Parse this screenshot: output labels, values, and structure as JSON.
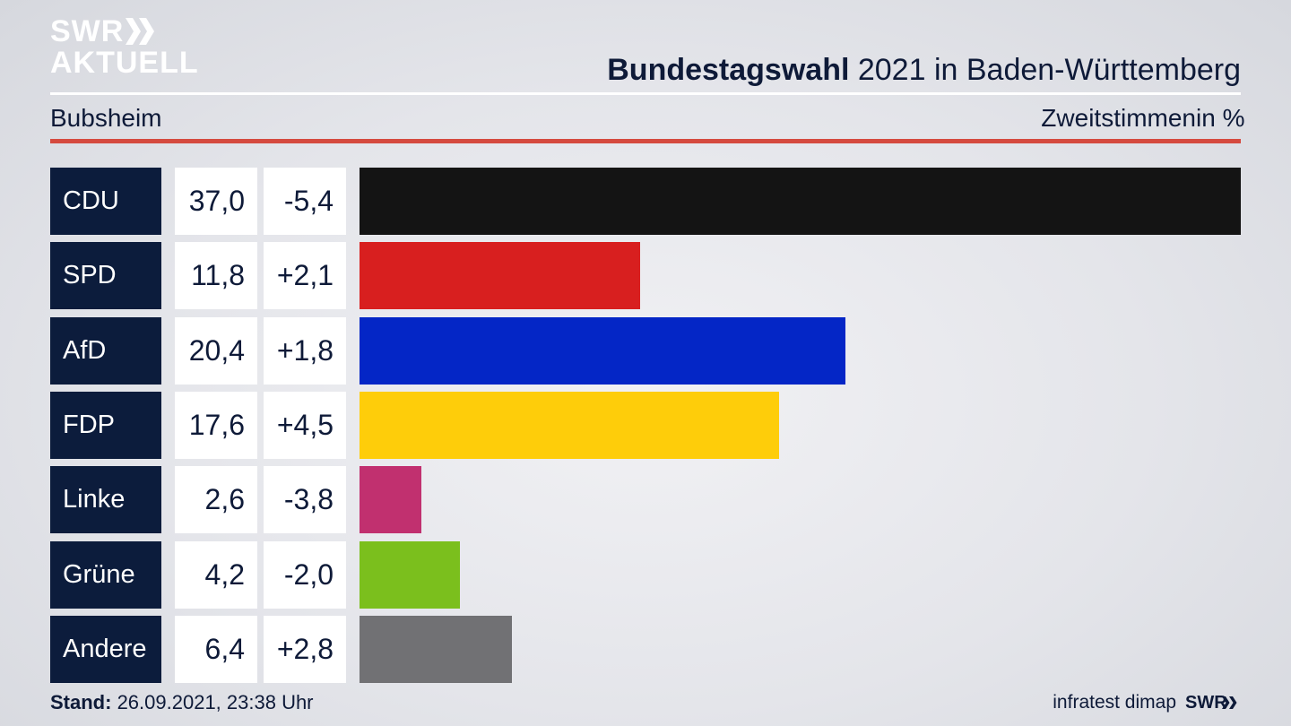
{
  "brand": {
    "logo_line1": "SWR",
    "logo_line2": "AKTUELL",
    "footer_logo": "SWR"
  },
  "header": {
    "title_bold": "Bundestagswahl",
    "title_rest": " 2021 in Baden-Württemberg",
    "subtitle": "Bubsheim",
    "metric": "Zweitstimmen",
    "unit": "in %"
  },
  "footer": {
    "stand_label": "Stand:",
    "stand_value": " 26.09.2021, 23:38 Uhr",
    "source": "infratest dimap"
  },
  "colors": {
    "accent_rule": "#d54a3f",
    "label_bg": "#0c1c3c"
  },
  "chart_data": {
    "type": "bar",
    "orientation": "horizontal",
    "categories": [
      "CDU",
      "SPD",
      "AfD",
      "FDP",
      "Linke",
      "Grüne",
      "Andere"
    ],
    "values": [
      37.0,
      11.8,
      20.4,
      17.6,
      2.6,
      4.2,
      6.4
    ],
    "value_labels": [
      "37,0",
      "11,8",
      "20,4",
      "17,6",
      "2,6",
      "4,2",
      "6,4"
    ],
    "changes": [
      -5.4,
      2.1,
      1.8,
      4.5,
      -3.8,
      -2.0,
      2.8
    ],
    "change_labels": [
      "-5,4",
      "+2,1",
      "+1,8",
      "+4,5",
      "-3,8",
      "-2,0",
      "+2,8"
    ],
    "colors": [
      "#141414",
      "#d81f1f",
      "#0426c6",
      "#fecd0a",
      "#c1306f",
      "#7bbf1d",
      "#717174"
    ],
    "xlim": [
      0,
      37.0
    ]
  }
}
